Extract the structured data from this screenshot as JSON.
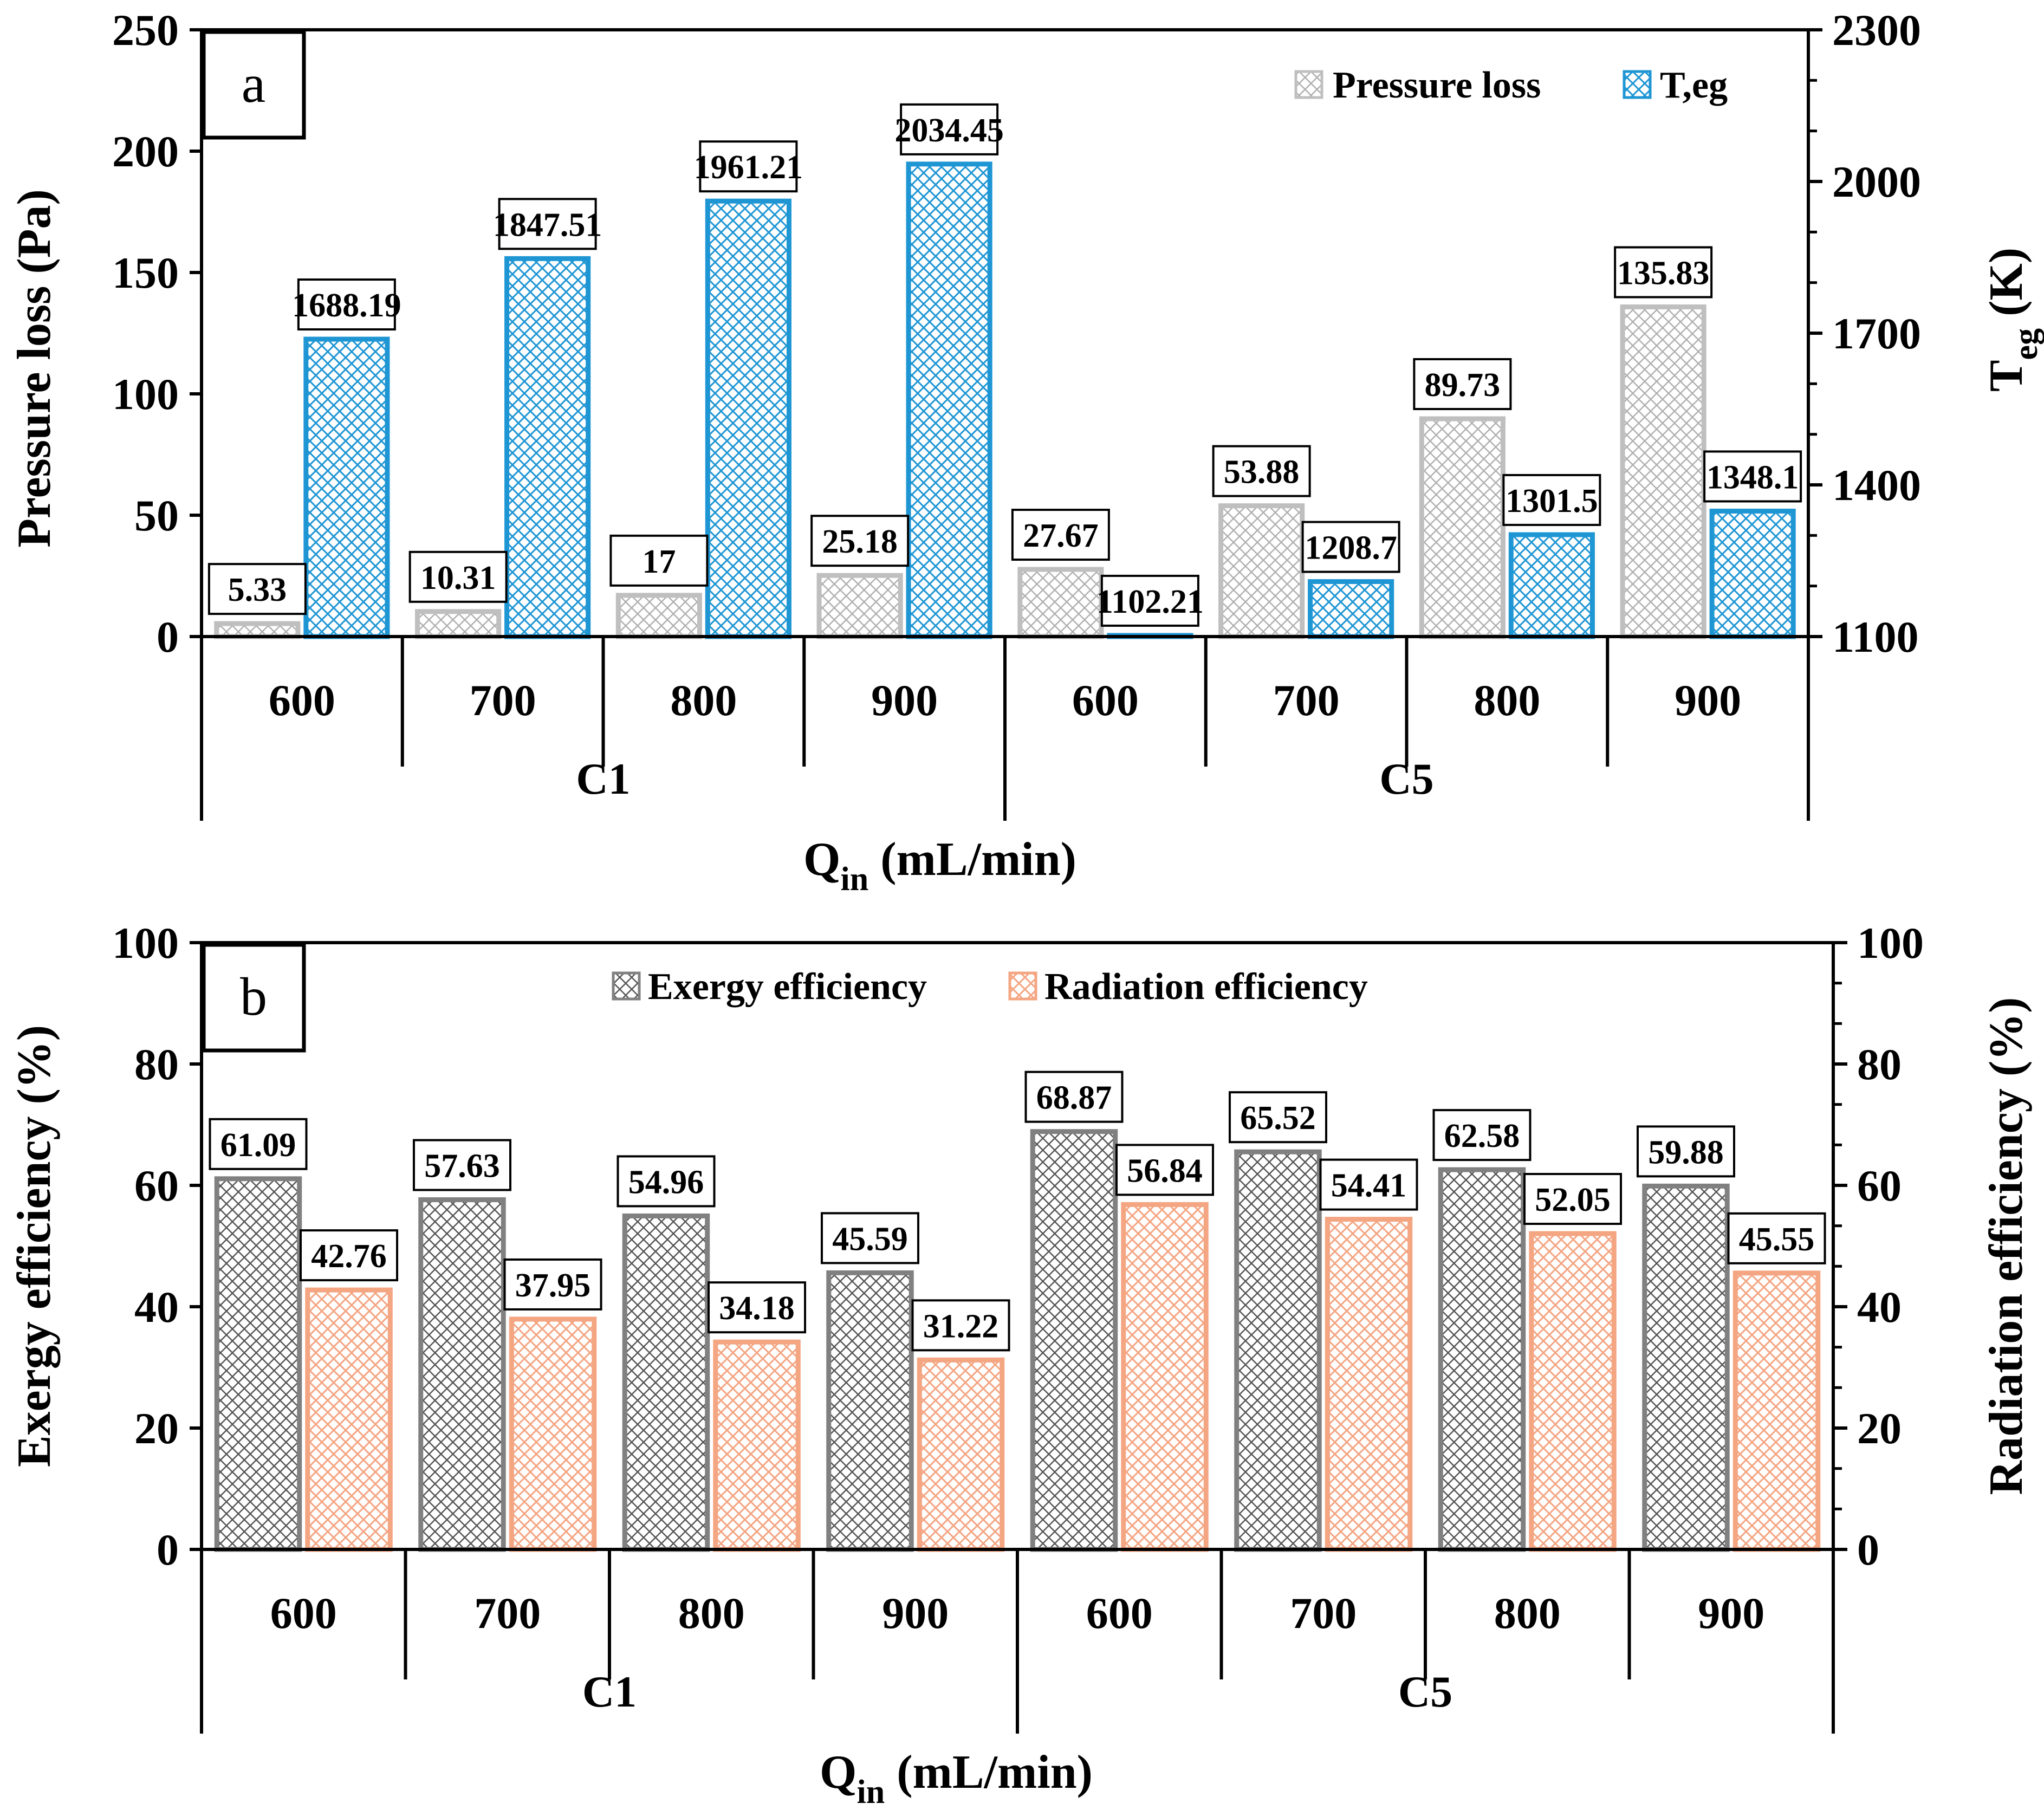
{
  "chart_data": [
    {
      "panel": "a",
      "type": "bar",
      "category_groups": [
        "C1",
        "C5"
      ],
      "categories": [
        "600",
        "700",
        "800",
        "900",
        "600",
        "700",
        "800",
        "900"
      ],
      "xlabel_main": "Q",
      "xlabel_sub": "in",
      "xlabel_unit": " (mL/min)",
      "ylabel": "Pressure loss (Pa)",
      "ylim": [
        0,
        250
      ],
      "yticks": [
        "0",
        "50",
        "100",
        "150",
        "200",
        "250"
      ],
      "ylabel_right_main": "T",
      "ylabel_right_sub": "eg",
      "ylabel_right_unit": " (K)",
      "ylim_right": [
        1100,
        2300
      ],
      "yticks_right": [
        "1100",
        "1400",
        "1700",
        "2000",
        "2300"
      ],
      "legend_position": "top-right",
      "series": [
        {
          "name": "Pressure loss",
          "axis": "left",
          "color": "#bfbfbf",
          "values": [
            5.33,
            10.31,
            17,
            25.18,
            27.67,
            53.88,
            89.73,
            135.83
          ],
          "labels": [
            "5.33",
            "10.31",
            "17",
            "25.18",
            "27.67",
            "53.88",
            "89.73",
            "135.83"
          ]
        },
        {
          "name": "T,eg",
          "axis": "right",
          "color": "#1f96d4",
          "values": [
            1688.19,
            1847.51,
            1961.21,
            2034.45,
            1102.21,
            1208.7,
            1301.5,
            1348.1
          ],
          "labels": [
            "1688.19",
            "1847.51",
            "1961.21",
            "2034.45",
            "1102.21",
            "1208.7",
            "1301.5",
            "1348.1"
          ]
        }
      ]
    },
    {
      "panel": "b",
      "type": "bar",
      "category_groups": [
        "C1",
        "C5"
      ],
      "categories": [
        "600",
        "700",
        "800",
        "900",
        "600",
        "700",
        "800",
        "900"
      ],
      "xlabel_main": "Q",
      "xlabel_sub": "in",
      "xlabel_unit": " (mL/min)",
      "ylabel": "Exergy efficiency (%)",
      "ylim": [
        0,
        100
      ],
      "yticks": [
        "0",
        "20",
        "40",
        "60",
        "80",
        "100"
      ],
      "ylabel_right": "Radiation efficiency (%)",
      "ylim_right": [
        0,
        100
      ],
      "yticks_right": [
        "0",
        "20",
        "40",
        "60",
        "80",
        "100"
      ],
      "legend_position": "top-center",
      "series": [
        {
          "name": "Exergy efficiency",
          "axis": "left",
          "color": "#808080",
          "values": [
            61.09,
            57.63,
            54.96,
            45.59,
            68.87,
            65.52,
            62.58,
            59.88
          ],
          "labels": [
            "61.09",
            "57.63",
            "54.96",
            "45.59",
            "68.87",
            "65.52",
            "62.58",
            "59.88"
          ]
        },
        {
          "name": "Radiation efficiency",
          "axis": "right",
          "color": "#f4a582",
          "values": [
            42.76,
            37.95,
            34.18,
            31.22,
            56.84,
            54.41,
            52.05,
            45.55
          ],
          "labels": [
            "42.76",
            "37.95",
            "34.18",
            "31.22",
            "56.84",
            "54.41",
            "52.05",
            "45.55"
          ]
        }
      ]
    }
  ]
}
